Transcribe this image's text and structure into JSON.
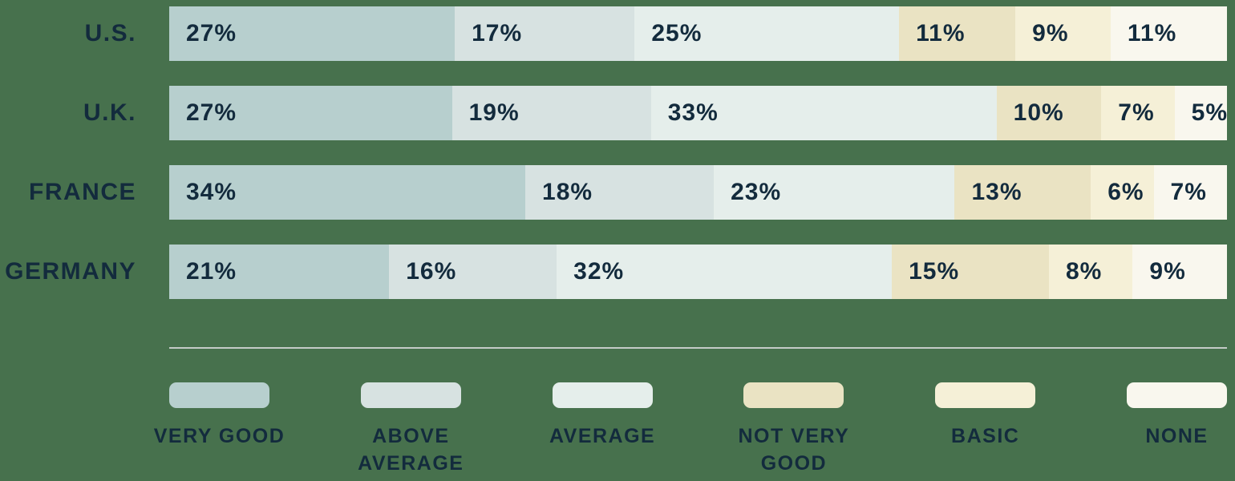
{
  "colors": {
    "background": "#47714D",
    "text": "#132B3D",
    "divider": "#C4CBC7"
  },
  "chart_data": {
    "type": "bar",
    "stacked": true,
    "orientation": "horizontal",
    "axis": "none",
    "grid": false,
    "legend_position": "bottom",
    "value_suffix": "%",
    "categories": [
      "U.S.",
      "U.K.",
      "FRANCE",
      "GERMANY"
    ],
    "series": [
      {
        "name": "Very good",
        "legend_label": "VERY GOOD",
        "color": "#B7CFCE",
        "values": [
          27,
          27,
          34,
          21
        ]
      },
      {
        "name": "Above average",
        "legend_label": "ABOVE\nAVERAGE",
        "color": "#D7E2E1",
        "values": [
          17,
          19,
          18,
          16
        ]
      },
      {
        "name": "Average",
        "legend_label": "AVERAGE",
        "color": "#E5EEEB",
        "values": [
          25,
          33,
          23,
          32
        ]
      },
      {
        "name": "Not very good",
        "legend_label": "NOT VERY\nGOOD",
        "color": "#EAE3C3",
        "values": [
          11,
          10,
          13,
          15
        ]
      },
      {
        "name": "Basic",
        "legend_label": "BASIC",
        "color": "#F5F0D7",
        "values": [
          9,
          7,
          6,
          8
        ]
      },
      {
        "name": "None",
        "legend_label": "NONE",
        "color": "#F9F7EE",
        "values": [
          11,
          5,
          7,
          9
        ]
      }
    ]
  }
}
